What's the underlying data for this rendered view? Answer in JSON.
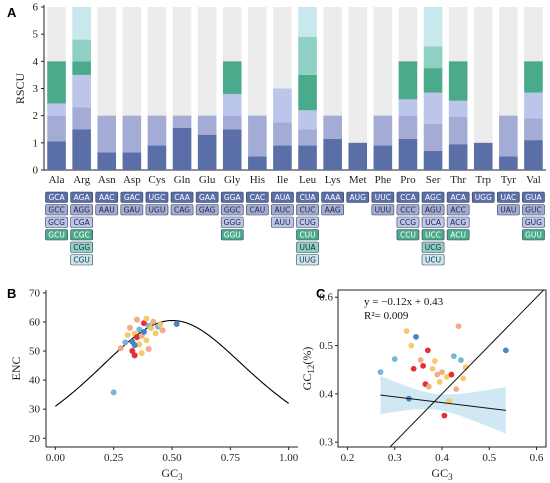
{
  "colors": {
    "c1": "#5a6ea8",
    "c2": "#a4acd6",
    "c3": "#bcc6ea",
    "c4": "#4aaa8c",
    "c5": "#8fd0c4",
    "c6": "#c8e8ee",
    "bar_bg": "#ececec"
  },
  "panels": {
    "a": "A",
    "b": "B",
    "c": "C"
  },
  "chart_data": [
    {
      "type": "bar",
      "stacked": true,
      "ylabel": "RSCU",
      "ylim": [
        0,
        6
      ],
      "yticks": [
        0,
        1,
        2,
        3,
        4,
        5,
        6
      ],
      "grid": false,
      "categories": [
        "Ala",
        "Arg",
        "Asn",
        "Asp",
        "Cys",
        "Gln",
        "Glu",
        "Gly",
        "His",
        "Ile",
        "Leu",
        "Lys",
        "Met",
        "Phe",
        "Pro",
        "Ser",
        "Thr",
        "Trp",
        "Tyr",
        "Val"
      ],
      "stacks": [
        {
          "aa": "Ala",
          "total": 4,
          "segments": [
            {
              "codon": "GCA",
              "value": 1.05,
              "color": "c1"
            },
            {
              "codon": "GCC",
              "value": 0.95,
              "color": "c2"
            },
            {
              "codon": "GCG",
              "value": 0.45,
              "color": "c3"
            },
            {
              "codon": "GCU",
              "value": 1.55,
              "color": "c4"
            }
          ]
        },
        {
          "aa": "Arg",
          "total": 6,
          "segments": [
            {
              "codon": "AGA",
              "value": 1.5,
              "color": "c1"
            },
            {
              "codon": "AGG",
              "value": 0.8,
              "color": "c2"
            },
            {
              "codon": "CGA",
              "value": 1.2,
              "color": "c3"
            },
            {
              "codon": "CGC",
              "value": 0.5,
              "color": "c4"
            },
            {
              "codon": "CGG",
              "value": 0.8,
              "color": "c5"
            },
            {
              "codon": "CGU",
              "value": 1.2,
              "color": "c6"
            }
          ]
        },
        {
          "aa": "Asn",
          "total": 2,
          "segments": [
            {
              "codon": "AAC",
              "value": 0.65,
              "color": "c1"
            },
            {
              "codon": "AAU",
              "value": 1.35,
              "color": "c2"
            }
          ]
        },
        {
          "aa": "Asp",
          "total": 2,
          "segments": [
            {
              "codon": "GAC",
              "value": 0.65,
              "color": "c1"
            },
            {
              "codon": "GAU",
              "value": 1.35,
              "color": "c2"
            }
          ]
        },
        {
          "aa": "Cys",
          "total": 2,
          "segments": [
            {
              "codon": "UGC",
              "value": 0.9,
              "color": "c1"
            },
            {
              "codon": "UGU",
              "value": 1.1,
              "color": "c2"
            }
          ]
        },
        {
          "aa": "Gln",
          "total": 2,
          "segments": [
            {
              "codon": "CAA",
              "value": 1.55,
              "color": "c1"
            },
            {
              "codon": "CAG",
              "value": 0.45,
              "color": "c2"
            }
          ]
        },
        {
          "aa": "Glu",
          "total": 2,
          "segments": [
            {
              "codon": "GAA",
              "value": 1.3,
              "color": "c1"
            },
            {
              "codon": "GAG",
              "value": 0.7,
              "color": "c2"
            }
          ]
        },
        {
          "aa": "Gly",
          "total": 4,
          "segments": [
            {
              "codon": "GGA",
              "value": 1.5,
              "color": "c1"
            },
            {
              "codon": "GGC",
              "value": 0.5,
              "color": "c2"
            },
            {
              "codon": "GGG",
              "value": 0.8,
              "color": "c3"
            },
            {
              "codon": "GGU",
              "value": 1.2,
              "color": "c4"
            }
          ]
        },
        {
          "aa": "His",
          "total": 2,
          "segments": [
            {
              "codon": "CAC",
              "value": 0.5,
              "color": "c1"
            },
            {
              "codon": "CAU",
              "value": 1.5,
              "color": "c2"
            }
          ]
        },
        {
          "aa": "Ile",
          "total": 3,
          "segments": [
            {
              "codon": "AUA",
              "value": 0.9,
              "color": "c1"
            },
            {
              "codon": "AUC",
              "value": 0.85,
              "color": "c2"
            },
            {
              "codon": "AUU",
              "value": 1.25,
              "color": "c3"
            }
          ]
        },
        {
          "aa": "Leu",
          "total": 6,
          "segments": [
            {
              "codon": "CUA",
              "value": 0.9,
              "color": "c1"
            },
            {
              "codon": "CUC",
              "value": 0.6,
              "color": "c2"
            },
            {
              "codon": "CUG",
              "value": 0.7,
              "color": "c3"
            },
            {
              "codon": "CUU",
              "value": 1.3,
              "color": "c4"
            },
            {
              "codon": "UUA",
              "value": 1.4,
              "color": "c5"
            },
            {
              "codon": "UUG",
              "value": 1.1,
              "color": "c6"
            }
          ]
        },
        {
          "aa": "Lys",
          "total": 2,
          "segments": [
            {
              "codon": "AAA",
              "value": 1.15,
              "color": "c1"
            },
            {
              "codon": "AAG",
              "value": 0.85,
              "color": "c2"
            }
          ]
        },
        {
          "aa": "Met",
          "total": 1,
          "segments": [
            {
              "codon": "AUG",
              "value": 1.0,
              "color": "c1"
            }
          ]
        },
        {
          "aa": "Phe",
          "total": 2,
          "segments": [
            {
              "codon": "UUC",
              "value": 0.9,
              "color": "c1"
            },
            {
              "codon": "UUU",
              "value": 1.1,
              "color": "c2"
            }
          ]
        },
        {
          "aa": "Pro",
          "total": 4,
          "segments": [
            {
              "codon": "CCA",
              "value": 1.15,
              "color": "c1"
            },
            {
              "codon": "CCC",
              "value": 0.85,
              "color": "c2"
            },
            {
              "codon": "CCG",
              "value": 0.6,
              "color": "c3"
            },
            {
              "codon": "CCU",
              "value": 1.4,
              "color": "c4"
            }
          ]
        },
        {
          "aa": "Ser",
          "total": 6,
          "segments": [
            {
              "codon": "AGC",
              "value": 0.7,
              "color": "c1"
            },
            {
              "codon": "AGU",
              "value": 1.0,
              "color": "c2"
            },
            {
              "codon": "UCA",
              "value": 1.15,
              "color": "c3"
            },
            {
              "codon": "UCC",
              "value": 0.9,
              "color": "c4"
            },
            {
              "codon": "UCG",
              "value": 0.8,
              "color": "c5"
            },
            {
              "codon": "UCU",
              "value": 1.45,
              "color": "c6"
            }
          ]
        },
        {
          "aa": "Thr",
          "total": 4,
          "segments": [
            {
              "codon": "ACA",
              "value": 0.95,
              "color": "c1"
            },
            {
              "codon": "ACC",
              "value": 1.0,
              "color": "c2"
            },
            {
              "codon": "ACG",
              "value": 0.6,
              "color": "c3"
            },
            {
              "codon": "ACU",
              "value": 1.45,
              "color": "c4"
            }
          ]
        },
        {
          "aa": "Trp",
          "total": 1,
          "segments": [
            {
              "codon": "UGG",
              "value": 1.0,
              "color": "c1"
            }
          ]
        },
        {
          "aa": "Tyr",
          "total": 2,
          "segments": [
            {
              "codon": "UAC",
              "value": 0.5,
              "color": "c1"
            },
            {
              "codon": "UAU",
              "value": 1.5,
              "color": "c2"
            }
          ]
        },
        {
          "aa": "Val",
          "total": 4,
          "segments": [
            {
              "codon": "GUA",
              "value": 1.1,
              "color": "c1"
            },
            {
              "codon": "GUC",
              "value": 0.8,
              "color": "c2"
            },
            {
              "codon": "GUG",
              "value": 0.95,
              "color": "c3"
            },
            {
              "codon": "GUU",
              "value": 1.15,
              "color": "c4"
            }
          ]
        }
      ]
    },
    {
      "type": "scatter",
      "xlabel": "GC",
      "xlabel_sub": "3",
      "ylabel": "ENC",
      "xlim": [
        -0.04,
        1.04
      ],
      "ylim": [
        17,
        71
      ],
      "xticks": [
        0.0,
        0.25,
        0.5,
        0.75,
        1.0
      ],
      "xticklabels": [
        "0.00",
        "0.25",
        "0.50",
        "0.75",
        "1.00"
      ],
      "yticks": [
        20,
        30,
        40,
        50,
        60,
        70
      ],
      "curve": "ENC = 2 + GC3 + 29/(GC3^2 + (1-GC3)^2)",
      "curve_color": "#000000",
      "points": [
        {
          "x": 0.25,
          "y": 35.8,
          "color": "#6fb3d8"
        },
        {
          "x": 0.52,
          "y": 59.3,
          "color": "#3f7fc0"
        },
        {
          "x": 0.28,
          "y": 51.0,
          "color": "#f4a582"
        },
        {
          "x": 0.3,
          "y": 53.0,
          "color": "#6fb3d8"
        },
        {
          "x": 0.31,
          "y": 55.5,
          "color": "#f6c85f"
        },
        {
          "x": 0.32,
          "y": 58.0,
          "color": "#f4a582"
        },
        {
          "x": 0.33,
          "y": 53.2,
          "color": "#3f7fc0"
        },
        {
          "x": 0.33,
          "y": 50.0,
          "color": "#e6232b"
        },
        {
          "x": 0.34,
          "y": 48.5,
          "color": "#e6232b"
        },
        {
          "x": 0.34,
          "y": 56.0,
          "color": "#f6c85f"
        },
        {
          "x": 0.35,
          "y": 54.8,
          "color": "#e6232b"
        },
        {
          "x": 0.35,
          "y": 60.8,
          "color": "#f4a582"
        },
        {
          "x": 0.36,
          "y": 52.3,
          "color": "#f6c85f"
        },
        {
          "x": 0.36,
          "y": 57.4,
          "color": "#6fb3d8"
        },
        {
          "x": 0.37,
          "y": 55.2,
          "color": "#f4a582"
        },
        {
          "x": 0.37,
          "y": 49.3,
          "color": "#f6c85f"
        },
        {
          "x": 0.38,
          "y": 59.6,
          "color": "#e6232b"
        },
        {
          "x": 0.38,
          "y": 56.6,
          "color": "#3f7fc0"
        },
        {
          "x": 0.39,
          "y": 53.7,
          "color": "#f6c85f"
        },
        {
          "x": 0.4,
          "y": 58.7,
          "color": "#6fb3d8"
        },
        {
          "x": 0.4,
          "y": 50.7,
          "color": "#f4a582"
        },
        {
          "x": 0.41,
          "y": 57.9,
          "color": "#f6c85f"
        },
        {
          "x": 0.42,
          "y": 60.1,
          "color": "#f4a582"
        },
        {
          "x": 0.43,
          "y": 56.1,
          "color": "#f6c85f"
        },
        {
          "x": 0.44,
          "y": 58.4,
          "color": "#6fb3d8"
        },
        {
          "x": 0.45,
          "y": 59.1,
          "color": "#f6c85f"
        },
        {
          "x": 0.46,
          "y": 57.1,
          "color": "#f4a582"
        },
        {
          "x": 0.34,
          "y": 52.0,
          "color": "#3f7fc0"
        },
        {
          "x": 0.39,
          "y": 61.1,
          "color": "#f6c85f"
        }
      ]
    },
    {
      "type": "scatter",
      "xlabel": "GC",
      "xlabel_sub": "3",
      "ylabel": "GC",
      "ylabel_sub": "12",
      "ylabel_suffix": "(%)",
      "xlim": [
        0.18,
        0.62
      ],
      "ylim": [
        0.29,
        0.615
      ],
      "xticks": [
        0.2,
        0.3,
        0.4,
        0.5,
        0.6
      ],
      "xticklabels": [
        "0.2",
        "0.3",
        "0.4",
        "0.5",
        "0.6"
      ],
      "yticks": [
        0.3,
        0.4,
        0.5,
        0.6
      ],
      "yticklabels": [
        "0.3",
        "0.4",
        "0.5",
        "0.6"
      ],
      "regression": {
        "slope": -0.12,
        "intercept": 0.43,
        "equation": "y = −0.12x + 0.43",
        "r2_label": "R²= 0.009",
        "line_color": "#111111",
        "ci_color": "#bfe0ef"
      },
      "reference_line": {
        "slope": 1,
        "intercept": 0,
        "color": "#111111"
      },
      "points": [
        {
          "x": 0.27,
          "y": 0.445,
          "color": "#6fb3d8"
        },
        {
          "x": 0.3,
          "y": 0.472,
          "color": "#6fb3d8"
        },
        {
          "x": 0.33,
          "y": 0.39,
          "color": "#3f7fc0"
        },
        {
          "x": 0.325,
          "y": 0.53,
          "color": "#f6c85f"
        },
        {
          "x": 0.335,
          "y": 0.5,
          "color": "#f6c85f"
        },
        {
          "x": 0.34,
          "y": 0.452,
          "color": "#e6232b"
        },
        {
          "x": 0.345,
          "y": 0.518,
          "color": "#3f7fc0"
        },
        {
          "x": 0.355,
          "y": 0.47,
          "color": "#f4a582"
        },
        {
          "x": 0.36,
          "y": 0.458,
          "color": "#e6232b"
        },
        {
          "x": 0.365,
          "y": 0.42,
          "color": "#e6232b"
        },
        {
          "x": 0.37,
          "y": 0.49,
          "color": "#e6232b"
        },
        {
          "x": 0.372,
          "y": 0.415,
          "color": "#f4a582"
        },
        {
          "x": 0.38,
          "y": 0.452,
          "color": "#f6c85f"
        },
        {
          "x": 0.385,
          "y": 0.468,
          "color": "#f6c85f"
        },
        {
          "x": 0.39,
          "y": 0.44,
          "color": "#f4a582"
        },
        {
          "x": 0.395,
          "y": 0.425,
          "color": "#f6c85f"
        },
        {
          "x": 0.4,
          "y": 0.445,
          "color": "#f4a582"
        },
        {
          "x": 0.405,
          "y": 0.355,
          "color": "#e6232b"
        },
        {
          "x": 0.41,
          "y": 0.435,
          "color": "#f6c85f"
        },
        {
          "x": 0.415,
          "y": 0.385,
          "color": "#f6c85f"
        },
        {
          "x": 0.42,
          "y": 0.44,
          "color": "#e6232b"
        },
        {
          "x": 0.425,
          "y": 0.478,
          "color": "#6fb3d8"
        },
        {
          "x": 0.43,
          "y": 0.41,
          "color": "#f4a582"
        },
        {
          "x": 0.435,
          "y": 0.54,
          "color": "#f4a582"
        },
        {
          "x": 0.44,
          "y": 0.47,
          "color": "#6fb3d8"
        },
        {
          "x": 0.445,
          "y": 0.432,
          "color": "#f6c85f"
        },
        {
          "x": 0.535,
          "y": 0.49,
          "color": "#3f7fc0"
        },
        {
          "x": 0.45,
          "y": 0.455,
          "color": "#f6c85f"
        }
      ]
    }
  ]
}
